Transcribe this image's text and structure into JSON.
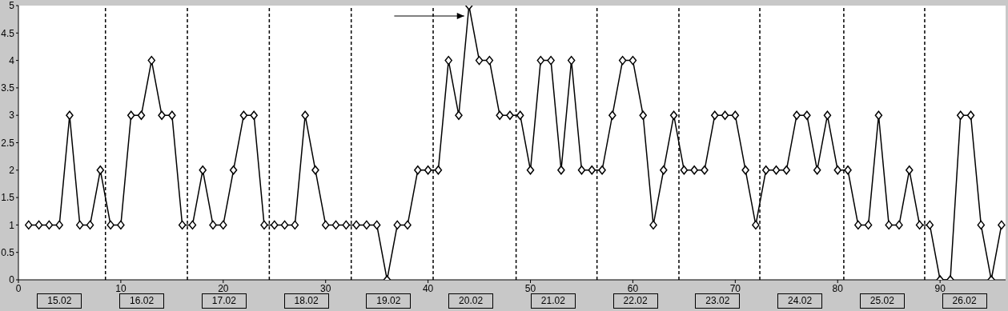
{
  "chart_data": {
    "type": "line",
    "color": "#000000",
    "marker": "diamond",
    "line_style": "solid",
    "x": [
      1,
      2,
      3,
      4,
      5,
      6,
      7,
      8,
      9,
      10,
      11,
      12,
      13,
      14,
      15,
      16,
      17,
      18,
      19,
      20,
      21,
      22,
      23,
      24,
      25,
      26,
      27,
      28,
      29,
      30,
      31,
      32,
      33,
      34,
      35,
      36,
      37,
      38,
      39,
      40,
      41,
      42,
      43,
      44,
      45,
      46,
      47,
      48,
      49,
      50,
      51,
      52,
      53,
      54,
      55,
      56,
      57,
      58,
      59,
      60,
      61,
      62,
      63,
      64,
      65,
      66,
      67,
      68,
      69,
      70,
      71,
      72,
      73,
      74,
      75,
      76,
      77,
      78,
      79,
      80,
      81,
      82,
      83,
      84,
      85,
      86,
      87,
      88,
      89,
      90,
      91,
      92,
      93,
      94,
      95,
      96
    ],
    "values": [
      1,
      1,
      1,
      1,
      3,
      1,
      1,
      2,
      1,
      1,
      3,
      3,
      4,
      3,
      3,
      1,
      1,
      2,
      1,
      1,
      2,
      3,
      3,
      1,
      1,
      1,
      1,
      3,
      2,
      1,
      1,
      1,
      1,
      1,
      1,
      0,
      1,
      1,
      2,
      2,
      2,
      4,
      3,
      5,
      4,
      4,
      3,
      3,
      3,
      2,
      4,
      4,
      2,
      4,
      2,
      2,
      2,
      3,
      4,
      4,
      3,
      1,
      2,
      3,
      2,
      2,
      2,
      3,
      3,
      3,
      2,
      1,
      2,
      2,
      2,
      3,
      3,
      2,
      3,
      2,
      2,
      1,
      1,
      3,
      1,
      1,
      2,
      1,
      1,
      0,
      0,
      3,
      3,
      1,
      0,
      1
    ],
    "xlim": [
      0,
      96.4
    ],
    "xticks": [
      0,
      10,
      20,
      30,
      40,
      50,
      60,
      70,
      80,
      90
    ],
    "ylim": [
      0,
      5
    ],
    "yticks": [
      0,
      0.5,
      1,
      1.5,
      2,
      2.5,
      3,
      3.5,
      4,
      4.5,
      5
    ],
    "ref_lines": [
      {
        "axis": "x",
        "value": 8.5,
        "color": "#000000",
        "line_style": "dashed"
      },
      {
        "axis": "x",
        "value": 16.5,
        "color": "#000000",
        "line_style": "dashed"
      },
      {
        "axis": "x",
        "value": 24.5,
        "color": "#000000",
        "line_style": "dashed"
      },
      {
        "axis": "x",
        "value": 32.5,
        "color": "#000000",
        "line_style": "dashed"
      },
      {
        "axis": "x",
        "value": 40.5,
        "color": "#000000",
        "line_style": "dashed"
      },
      {
        "axis": "x",
        "value": 48.6,
        "color": "#000000",
        "line_style": "dashed"
      },
      {
        "axis": "x",
        "value": 56.5,
        "color": "#000000",
        "line_style": "dashed"
      },
      {
        "axis": "x",
        "value": 64.5,
        "color": "#000000",
        "line_style": "dashed"
      },
      {
        "axis": "x",
        "value": 72.4,
        "color": "#000000",
        "line_style": "dashed"
      },
      {
        "axis": "x",
        "value": 80.6,
        "color": "#000000",
        "line_style": "dashed"
      },
      {
        "axis": "x",
        "value": 88.5,
        "color": "#000000",
        "line_style": "dashed"
      }
    ],
    "annotations": [
      "15.02",
      "16.02",
      "17.02",
      "18.02",
      "19.02",
      "20.02",
      "21.02",
      "22.02",
      "23.02",
      "24.02",
      "25.02",
      "26.02"
    ]
  }
}
